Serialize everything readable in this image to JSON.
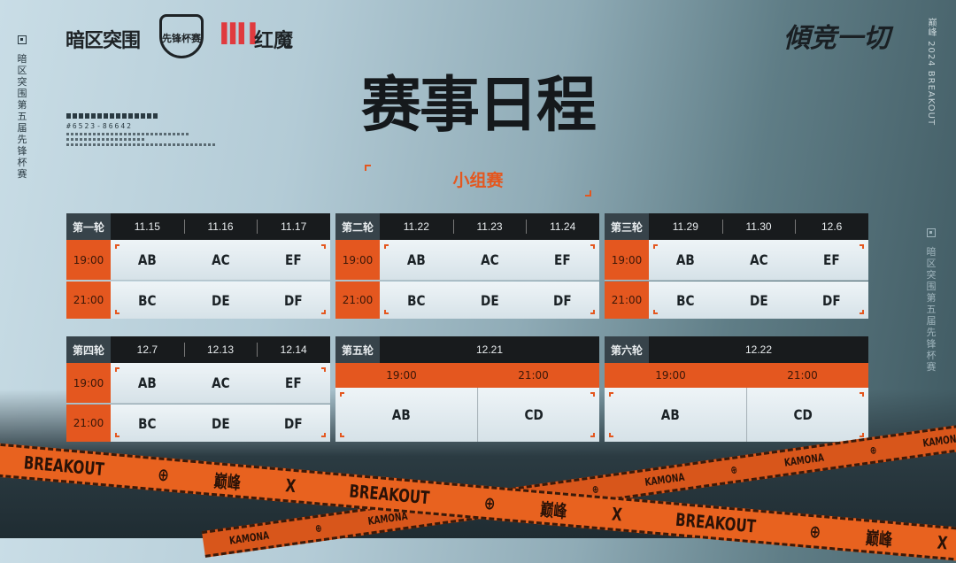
{
  "branding": {
    "logo_game": "暗区突围",
    "logo_cup": "先锋杯赛",
    "logo_brand_mark": "ⅢⅠ",
    "logo_brand": "红魔",
    "slogan": "傾竞一切",
    "side_text": "暗区突围第五届先锋杯赛",
    "top_right_text": "巅峰 2024 BREAKOUT",
    "code": "#6523-86642"
  },
  "title": "赛事日程",
  "subtitle": "小组赛",
  "colors": {
    "accent": "#e4571f",
    "header": "#181b1d",
    "round_label": "#37434a"
  },
  "rounds_grid": [
    {
      "round": "第一轮",
      "dates": [
        "11.15",
        "11.16",
        "11.17"
      ],
      "rows": [
        {
          "time": "19:00",
          "matches": [
            "AB",
            "AC",
            "EF"
          ]
        },
        {
          "time": "21:00",
          "matches": [
            "BC",
            "DE",
            "DF"
          ]
        }
      ]
    },
    {
      "round": "第二轮",
      "dates": [
        "11.22",
        "11.23",
        "11.24"
      ],
      "rows": [
        {
          "time": "19:00",
          "matches": [
            "AB",
            "AC",
            "EF"
          ]
        },
        {
          "time": "21:00",
          "matches": [
            "BC",
            "DE",
            "DF"
          ]
        }
      ]
    },
    {
      "round": "第三轮",
      "dates": [
        "11.29",
        "11.30",
        "12.6"
      ],
      "rows": [
        {
          "time": "19:00",
          "matches": [
            "AB",
            "AC",
            "EF"
          ]
        },
        {
          "time": "21:00",
          "matches": [
            "BC",
            "DE",
            "DF"
          ]
        }
      ]
    },
    {
      "round": "第四轮",
      "dates": [
        "12.7",
        "12.13",
        "12.14"
      ],
      "rows": [
        {
          "time": "19:00",
          "matches": [
            "AB",
            "AC",
            "EF"
          ]
        },
        {
          "time": "21:00",
          "matches": [
            "BC",
            "DE",
            "DF"
          ]
        }
      ]
    }
  ],
  "rounds_single": [
    {
      "round": "第五轮",
      "date": "12.21",
      "times": [
        "19:00",
        "21:00"
      ],
      "matches": [
        "AB",
        "CD"
      ]
    },
    {
      "round": "第六轮",
      "date": "12.22",
      "times": [
        "19:00",
        "21:00"
      ],
      "matches": [
        "AB",
        "CD"
      ]
    }
  ],
  "tape": {
    "main": [
      "BREAKOUT",
      "⊕",
      "巅峰",
      "X"
    ],
    "secondary": [
      "KAMONA",
      "⊕"
    ]
  }
}
